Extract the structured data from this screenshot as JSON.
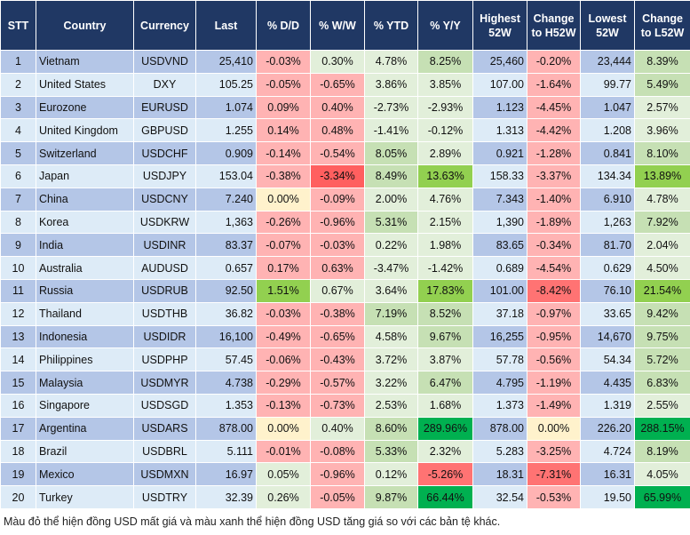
{
  "headers": [
    "STT",
    "Country",
    "Currency",
    "Last",
    "% D/D",
    "% W/W",
    "% YTD",
    "% Y/Y",
    "Highest 52W",
    "Change to H52W",
    "Lowest 52W",
    "Change to L52W"
  ],
  "colors": {
    "header_bg": "#203864",
    "row_odd": "#b4c6e7",
    "row_even": "#ddebf7",
    "r": "#ffb3b3",
    "R": "#ff7373",
    "RR": "#ff5f5f",
    "g": "#e2efda",
    "G": "#c6e0b4",
    "GG": "#92d050",
    "GGG": "#00b050",
    "y": "#fff2cc"
  },
  "rows": [
    {
      "stt": "1",
      "country": "Vietnam",
      "currency": "USDVND",
      "last": "25,410",
      "dd": "-0.03%",
      "ww": "0.30%",
      "ytd": "4.78%",
      "yy": "8.25%",
      "high": "25,460",
      "ch": "-0.20%",
      "low": "23,444",
      "cl": "8.39%",
      "tones": [
        "r",
        "g",
        "g",
        "G",
        "r",
        "G"
      ]
    },
    {
      "stt": "2",
      "country": "United States",
      "currency": "DXY",
      "last": "105.25",
      "dd": "-0.05%",
      "ww": "-0.65%",
      "ytd": "3.86%",
      "yy": "3.85%",
      "high": "107.00",
      "ch": "-1.64%",
      "low": "99.77",
      "cl": "5.49%",
      "tones": [
        "r",
        "r",
        "g",
        "g",
        "r",
        "G"
      ]
    },
    {
      "stt": "3",
      "country": "Eurozone",
      "currency": "EURUSD",
      "last": "1.074",
      "dd": "0.09%",
      "ww": "0.40%",
      "ytd": "-2.73%",
      "yy": "-2.93%",
      "high": "1.123",
      "ch": "-4.45%",
      "low": "1.047",
      "cl": "2.57%",
      "tones": [
        "r",
        "r",
        "g",
        "g",
        "r",
        "g"
      ]
    },
    {
      "stt": "4",
      "country": "United Kingdom",
      "currency": "GBPUSD",
      "last": "1.255",
      "dd": "0.14%",
      "ww": "0.48%",
      "ytd": "-1.41%",
      "yy": "-0.12%",
      "high": "1.313",
      "ch": "-4.42%",
      "low": "1.208",
      "cl": "3.96%",
      "tones": [
        "r",
        "r",
        "g",
        "g",
        "r",
        "g"
      ]
    },
    {
      "stt": "5",
      "country": "Switzerland",
      "currency": "USDCHF",
      "last": "0.909",
      "dd": "-0.14%",
      "ww": "-0.54%",
      "ytd": "8.05%",
      "yy": "2.89%",
      "high": "0.921",
      "ch": "-1.28%",
      "low": "0.841",
      "cl": "8.10%",
      "tones": [
        "r",
        "r",
        "G",
        "g",
        "r",
        "G"
      ]
    },
    {
      "stt": "6",
      "country": "Japan",
      "currency": "USDJPY",
      "last": "153.04",
      "dd": "-0.38%",
      "ww": "-3.34%",
      "ytd": "8.49%",
      "yy": "13.63%",
      "high": "158.33",
      "ch": "-3.37%",
      "low": "134.34",
      "cl": "13.89%",
      "tones": [
        "r",
        "RR",
        "G",
        "GG",
        "r",
        "GG"
      ]
    },
    {
      "stt": "7",
      "country": "China",
      "currency": "USDCNY",
      "last": "7.240",
      "dd": "0.00%",
      "ww": "-0.09%",
      "ytd": "2.00%",
      "yy": "4.76%",
      "high": "7.343",
      "ch": "-1.40%",
      "low": "6.910",
      "cl": "4.78%",
      "tones": [
        "y",
        "r",
        "g",
        "g",
        "r",
        "g"
      ]
    },
    {
      "stt": "8",
      "country": "Korea",
      "currency": "USDKRW",
      "last": "1,363",
      "dd": "-0.26%",
      "ww": "-0.96%",
      "ytd": "5.31%",
      "yy": "2.15%",
      "high": "1,390",
      "ch": "-1.89%",
      "low": "1,263",
      "cl": "7.92%",
      "tones": [
        "r",
        "r",
        "G",
        "g",
        "r",
        "G"
      ]
    },
    {
      "stt": "9",
      "country": "India",
      "currency": "USDINR",
      "last": "83.37",
      "dd": "-0.07%",
      "ww": "-0.03%",
      "ytd": "0.22%",
      "yy": "1.98%",
      "high": "83.65",
      "ch": "-0.34%",
      "low": "81.70",
      "cl": "2.04%",
      "tones": [
        "r",
        "r",
        "g",
        "g",
        "r",
        "g"
      ]
    },
    {
      "stt": "10",
      "country": "Australia",
      "currency": "AUDUSD",
      "last": "0.657",
      "dd": "0.17%",
      "ww": "0.63%",
      "ytd": "-3.47%",
      "yy": "-1.42%",
      "high": "0.689",
      "ch": "-4.54%",
      "low": "0.629",
      "cl": "4.50%",
      "tones": [
        "r",
        "r",
        "g",
        "g",
        "r",
        "g"
      ]
    },
    {
      "stt": "11",
      "country": "Russia",
      "currency": "USDRUB",
      "last": "92.50",
      "dd": "1.51%",
      "ww": "0.67%",
      "ytd": "3.64%",
      "yy": "17.83%",
      "high": "101.00",
      "ch": "-8.42%",
      "low": "76.10",
      "cl": "21.54%",
      "tones": [
        "GG",
        "g",
        "g",
        "GG",
        "R",
        "GG"
      ]
    },
    {
      "stt": "12",
      "country": "Thailand",
      "currency": "USDTHB",
      "last": "36.82",
      "dd": "-0.03%",
      "ww": "-0.38%",
      "ytd": "7.19%",
      "yy": "8.52%",
      "high": "37.18",
      "ch": "-0.97%",
      "low": "33.65",
      "cl": "9.42%",
      "tones": [
        "r",
        "r",
        "G",
        "G",
        "r",
        "G"
      ]
    },
    {
      "stt": "13",
      "country": "Indonesia",
      "currency": "USDIDR",
      "last": "16,100",
      "dd": "-0.49%",
      "ww": "-0.65%",
      "ytd": "4.58%",
      "yy": "9.67%",
      "high": "16,255",
      "ch": "-0.95%",
      "low": "14,670",
      "cl": "9.75%",
      "tones": [
        "r",
        "r",
        "g",
        "G",
        "r",
        "G"
      ]
    },
    {
      "stt": "14",
      "country": "Philippines",
      "currency": "USDPHP",
      "last": "57.45",
      "dd": "-0.06%",
      "ww": "-0.43%",
      "ytd": "3.72%",
      "yy": "3.87%",
      "high": "57.78",
      "ch": "-0.56%",
      "low": "54.34",
      "cl": "5.72%",
      "tones": [
        "r",
        "r",
        "g",
        "g",
        "r",
        "G"
      ]
    },
    {
      "stt": "15",
      "country": "Malaysia",
      "currency": "USDMYR",
      "last": "4.738",
      "dd": "-0.29%",
      "ww": "-0.57%",
      "ytd": "3.22%",
      "yy": "6.47%",
      "high": "4.795",
      "ch": "-1.19%",
      "low": "4.435",
      "cl": "6.83%",
      "tones": [
        "r",
        "r",
        "g",
        "G",
        "r",
        "G"
      ]
    },
    {
      "stt": "16",
      "country": "Singapore",
      "currency": "USDSGD",
      "last": "1.353",
      "dd": "-0.13%",
      "ww": "-0.73%",
      "ytd": "2.53%",
      "yy": "1.68%",
      "high": "1.373",
      "ch": "-1.49%",
      "low": "1.319",
      "cl": "2.55%",
      "tones": [
        "r",
        "r",
        "g",
        "g",
        "r",
        "g"
      ]
    },
    {
      "stt": "17",
      "country": "Argentina",
      "currency": "USDARS",
      "last": "878.00",
      "dd": "0.00%",
      "ww": "0.40%",
      "ytd": "8.60%",
      "yy": "289.96%",
      "high": "878.00",
      "ch": "0.00%",
      "low": "226.20",
      "cl": "288.15%",
      "tones": [
        "y",
        "g",
        "G",
        "GGG",
        "y",
        "GGG"
      ]
    },
    {
      "stt": "18",
      "country": "Brazil",
      "currency": "USDBRL",
      "last": "5.111",
      "dd": "-0.01%",
      "ww": "-0.08%",
      "ytd": "5.33%",
      "yy": "2.32%",
      "high": "5.283",
      "ch": "-3.25%",
      "low": "4.724",
      "cl": "8.19%",
      "tones": [
        "r",
        "r",
        "G",
        "g",
        "r",
        "G"
      ]
    },
    {
      "stt": "19",
      "country": "Mexico",
      "currency": "USDMXN",
      "last": "16.97",
      "dd": "0.05%",
      "ww": "-0.96%",
      "ytd": "0.12%",
      "yy": "-5.26%",
      "high": "18.31",
      "ch": "-7.31%",
      "low": "16.31",
      "cl": "4.05%",
      "tones": [
        "g",
        "r",
        "g",
        "R",
        "R",
        "g"
      ]
    },
    {
      "stt": "20",
      "country": "Turkey",
      "currency": "USDTRY",
      "last": "32.39",
      "dd": "0.26%",
      "ww": "-0.05%",
      "ytd": "9.87%",
      "yy": "66.44%",
      "high": "32.54",
      "ch": "-0.53%",
      "low": "19.50",
      "cl": "65.99%",
      "tones": [
        "g",
        "r",
        "G",
        "GGG",
        "r",
        "GGG"
      ]
    }
  ],
  "footnote": "Màu đỏ thể hiện đồng USD mất giá và màu xanh thể hiện đồng USD tăng giá so với các bản tệ khác."
}
